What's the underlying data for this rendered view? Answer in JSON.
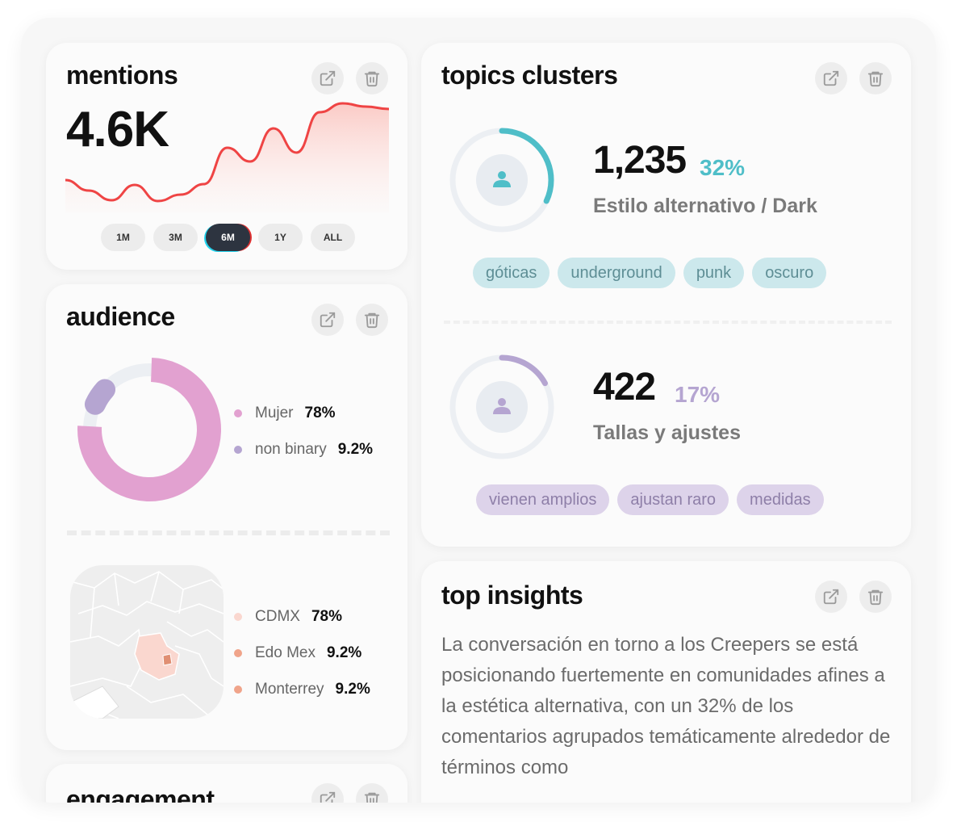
{
  "mentions": {
    "title": "mentions",
    "value": "4.6K",
    "ranges": [
      "1M",
      "3M",
      "6M",
      "1Y",
      "ALL"
    ],
    "active_range": "6M",
    "trend": [
      40,
      27,
      15,
      34,
      14,
      22,
      35,
      80,
      63,
      104,
      74,
      124,
      135,
      131,
      128
    ],
    "colors": {
      "line": "#ef4444",
      "fill": "#fbd3d0"
    }
  },
  "audience": {
    "title": "audience",
    "gender": [
      {
        "label": "Mujer",
        "value": "78%",
        "color": "#e2a1d0"
      },
      {
        "label": "non binary",
        "value": "9.2%",
        "color": "#b5a5d1"
      }
    ],
    "regions": [
      {
        "label": "CDMX",
        "value": "78%",
        "color": "#fad7cf"
      },
      {
        "label": "Edo Mex",
        "value": "9.2%",
        "color": "#f0a48a"
      },
      {
        "label": "Monterrey",
        "value": "9.2%",
        "color": "#f0a48a"
      }
    ]
  },
  "topics": {
    "title": "topics clusters",
    "clusters": [
      {
        "count": "1,235",
        "pct": "32%",
        "name": "Estilo alternativo / Dark",
        "color": "#4fbec8",
        "fraction": 0.32,
        "tags": [
          "góticas",
          "underground",
          "punk",
          "oscuro"
        ]
      },
      {
        "count": "422",
        "pct": "17%",
        "name": "Tallas y ajustes",
        "color": "#b5a5d1",
        "fraction": 0.17,
        "tags": [
          "vienen amplios",
          "ajustan raro",
          "medidas"
        ]
      }
    ]
  },
  "insights": {
    "title": "top insights",
    "text": "La conversación en torno a los Creepers se está posicionando fuertemente en comunidades afines a la estética alternativa, con un 32% de los comentarios agrupados temáticamente alrededor de términos como"
  },
  "engagement": {
    "title": "engagement"
  },
  "icons": {
    "open": "external-link-icon",
    "delete": "trash-icon",
    "user": "user-icon"
  }
}
